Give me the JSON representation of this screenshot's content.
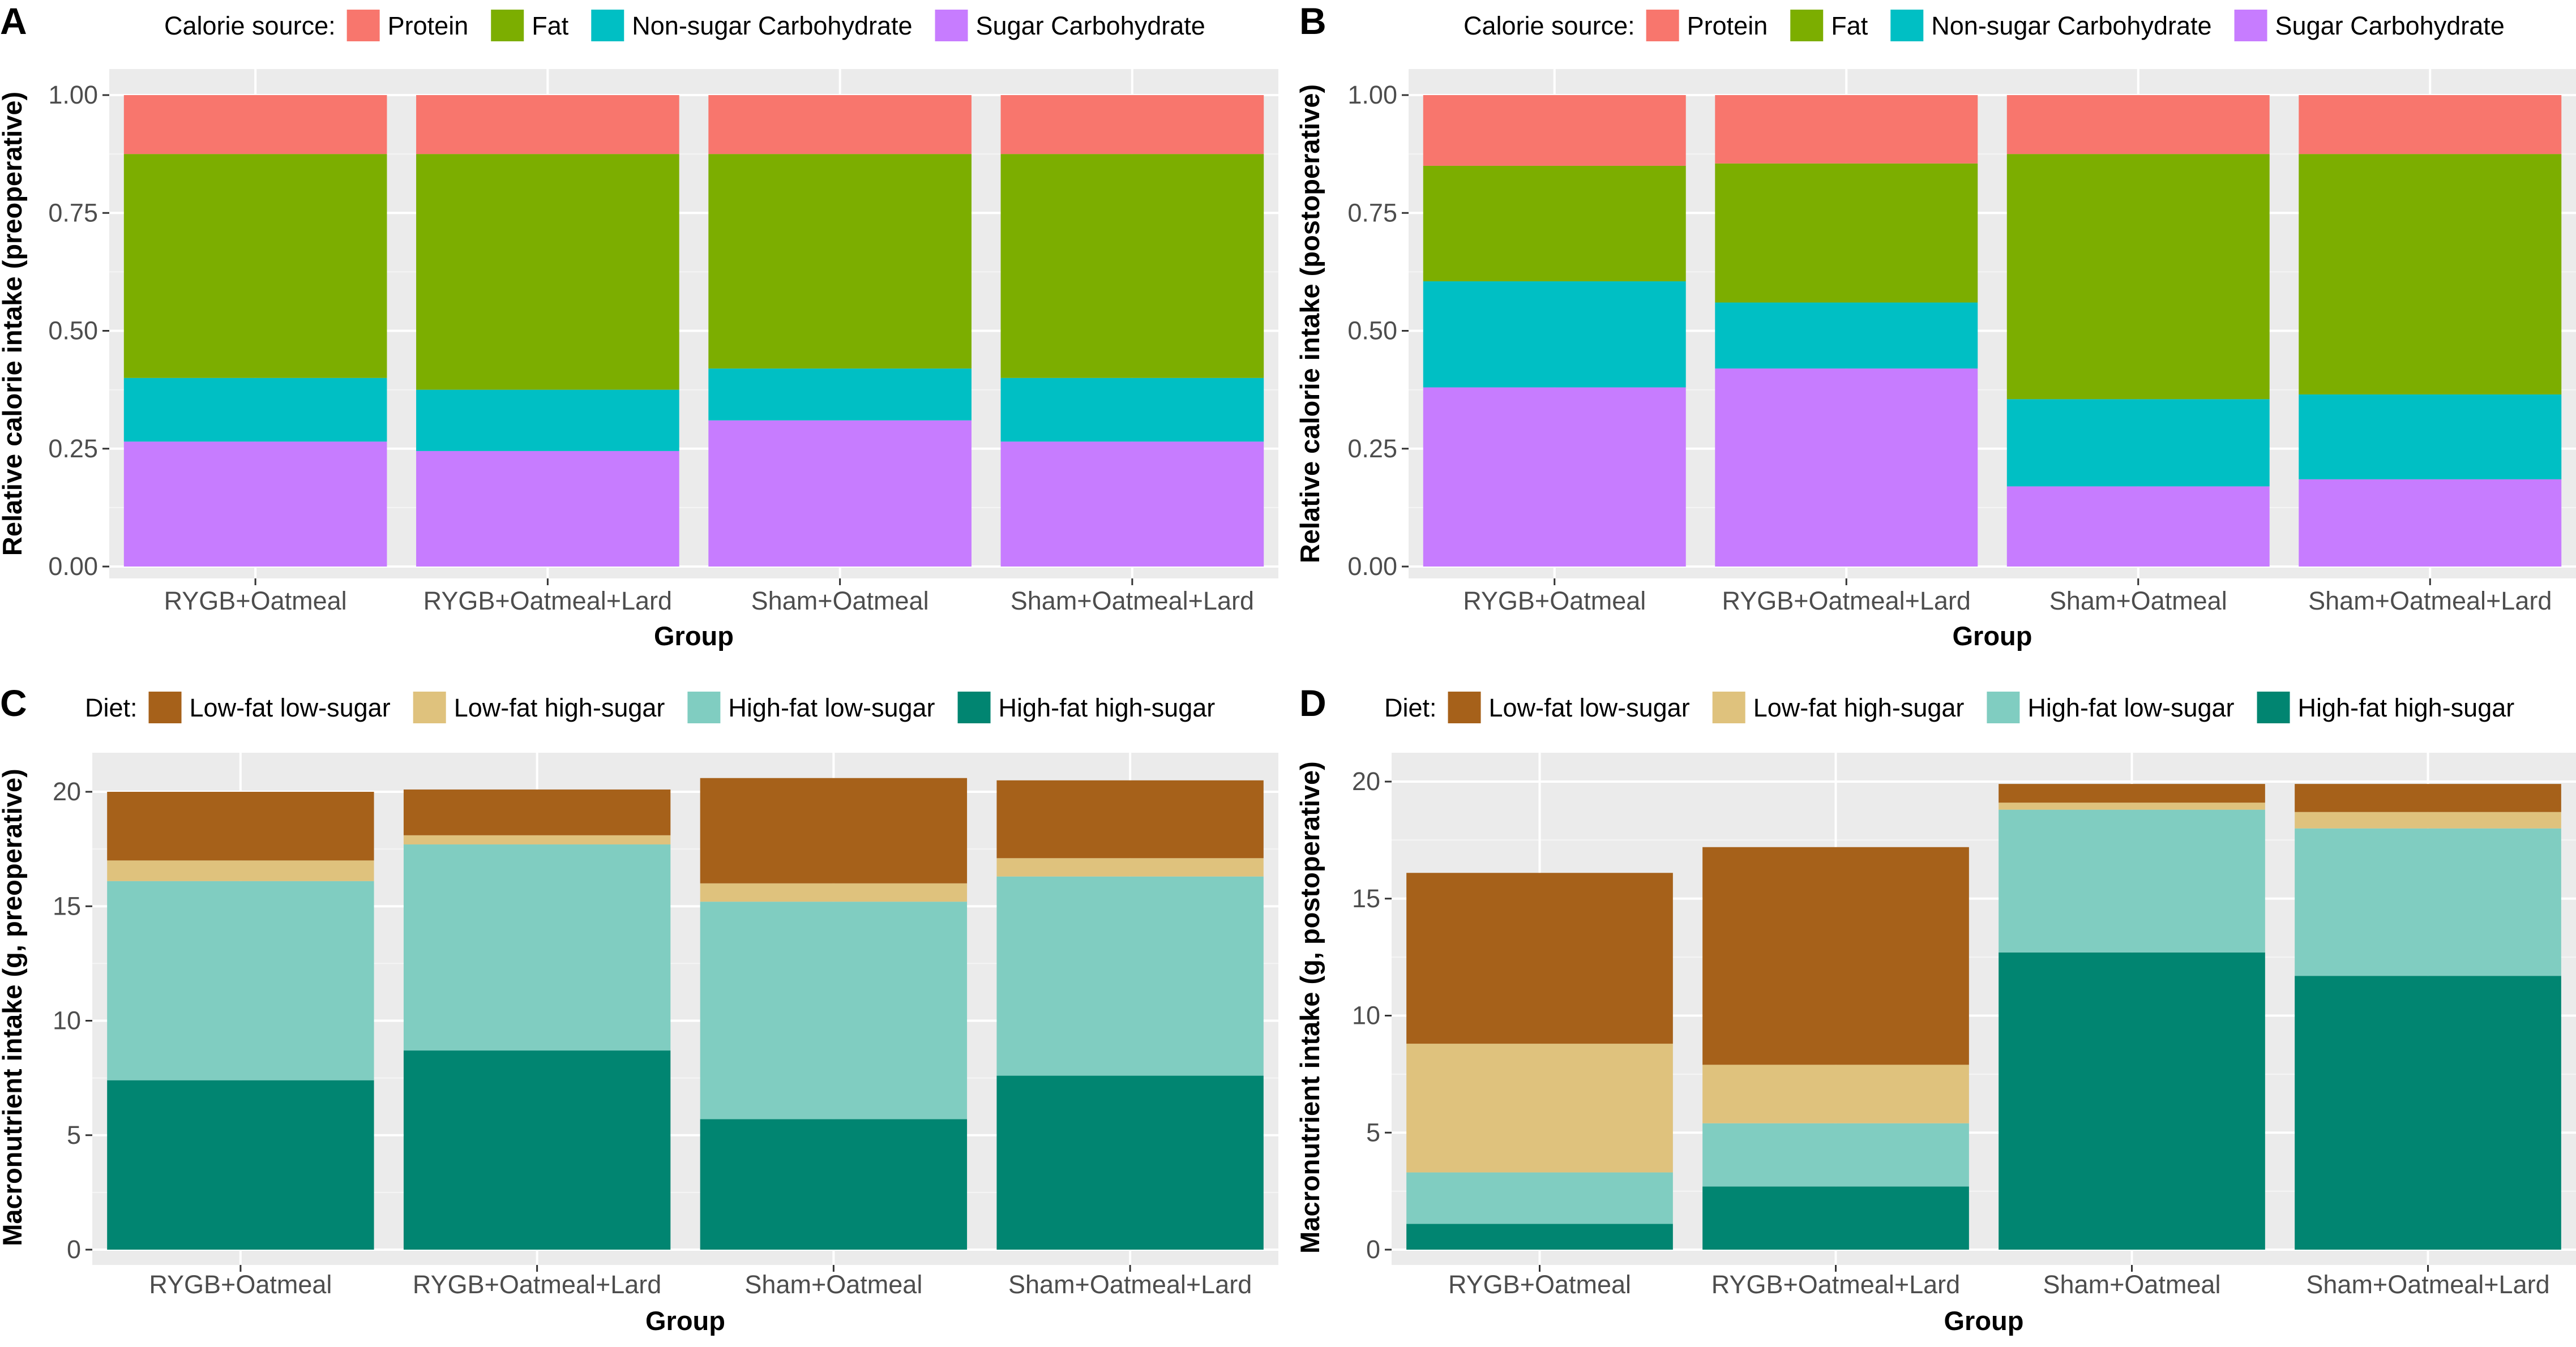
{
  "panels": [
    {
      "id": "A",
      "legend": {
        "title": "Calorie source:",
        "items": [
          {
            "label": "Protein",
            "color": "#F8766D"
          },
          {
            "label": "Fat",
            "color": "#7CAE00"
          },
          {
            "label": "Non-sugar Carbohydrate",
            "color": "#00BFC4"
          },
          {
            "label": "Sugar Carbohydrate",
            "color": "#C77CFF"
          }
        ]
      },
      "chart_data": {
        "type": "bar",
        "stacked": true,
        "title": "",
        "xlabel": "Group",
        "ylabel": "Relative calorie intake (preoperative)",
        "ylim": [
          0,
          1.0
        ],
        "yticks": [
          0.0,
          0.25,
          0.5,
          0.75,
          1.0
        ],
        "ytick_labels": [
          "0.00",
          "0.25",
          "0.50",
          "0.75",
          "1.00"
        ],
        "categories": [
          "RYGB+Oatmeal",
          "RYGB+Oatmeal+Lard",
          "Sham+Oatmeal",
          "Sham+Oatmeal+Lard"
        ],
        "series": [
          {
            "name": "Sugar Carbohydrate",
            "color": "#C77CFF",
            "values": [
              0.265,
              0.245,
              0.31,
              0.265
            ]
          },
          {
            "name": "Non-sugar Carbohydrate",
            "color": "#00BFC4",
            "values": [
              0.135,
              0.13,
              0.11,
              0.135
            ]
          },
          {
            "name": "Fat",
            "color": "#7CAE00",
            "values": [
              0.475,
              0.5,
              0.455,
              0.475
            ]
          },
          {
            "name": "Protein",
            "color": "#F8766D",
            "values": [
              0.125,
              0.125,
              0.125,
              0.125
            ]
          }
        ]
      }
    },
    {
      "id": "B",
      "legend": {
        "title": "Calorie source:",
        "items": [
          {
            "label": "Protein",
            "color": "#F8766D"
          },
          {
            "label": "Fat",
            "color": "#7CAE00"
          },
          {
            "label": "Non-sugar Carbohydrate",
            "color": "#00BFC4"
          },
          {
            "label": "Sugar Carbohydrate",
            "color": "#C77CFF"
          }
        ]
      },
      "chart_data": {
        "type": "bar",
        "stacked": true,
        "title": "",
        "xlabel": "Group",
        "ylabel": "Relative calorie intake (postoperative)",
        "ylim": [
          0,
          1.0
        ],
        "yticks": [
          0.0,
          0.25,
          0.5,
          0.75,
          1.0
        ],
        "ytick_labels": [
          "0.00",
          "0.25",
          "0.50",
          "0.75",
          "1.00"
        ],
        "categories": [
          "RYGB+Oatmeal",
          "RYGB+Oatmeal+Lard",
          "Sham+Oatmeal",
          "Sham+Oatmeal+Lard"
        ],
        "series": [
          {
            "name": "Sugar Carbohydrate",
            "color": "#C77CFF",
            "values": [
              0.38,
              0.42,
              0.17,
              0.185
            ]
          },
          {
            "name": "Non-sugar Carbohydrate",
            "color": "#00BFC4",
            "values": [
              0.225,
              0.14,
              0.185,
              0.18
            ]
          },
          {
            "name": "Fat",
            "color": "#7CAE00",
            "values": [
              0.245,
              0.295,
              0.52,
              0.51
            ]
          },
          {
            "name": "Protein",
            "color": "#F8766D",
            "values": [
              0.15,
              0.145,
              0.125,
              0.125
            ]
          }
        ]
      }
    },
    {
      "id": "C",
      "legend": {
        "title": "Diet:",
        "items": [
          {
            "label": "Low-fat low-sugar",
            "color": "#A6611A"
          },
          {
            "label": "Low-fat high-sugar",
            "color": "#DFC27D"
          },
          {
            "label": "High-fat low-sugar",
            "color": "#80CDC1"
          },
          {
            "label": "High-fat high-sugar",
            "color": "#018571"
          }
        ]
      },
      "chart_data": {
        "type": "bar",
        "stacked": true,
        "title": "",
        "xlabel": "Group",
        "ylabel": "Macronutrient intake (g, preoperative)",
        "ylim": [
          0,
          21
        ],
        "yticks": [
          0,
          5,
          10,
          15,
          20
        ],
        "ytick_labels": [
          "0",
          "5",
          "10",
          "15",
          "20"
        ],
        "categories": [
          "RYGB+Oatmeal",
          "RYGB+Oatmeal+Lard",
          "Sham+Oatmeal",
          "Sham+Oatmeal+Lard"
        ],
        "series": [
          {
            "name": "High-fat high-sugar",
            "color": "#018571",
            "values": [
              7.4,
              8.7,
              5.7,
              7.6
            ]
          },
          {
            "name": "High-fat low-sugar",
            "color": "#80CDC1",
            "values": [
              8.7,
              9.0,
              9.5,
              8.7
            ]
          },
          {
            "name": "Low-fat high-sugar",
            "color": "#DFC27D",
            "values": [
              0.9,
              0.4,
              0.8,
              0.8
            ]
          },
          {
            "name": "Low-fat low-sugar",
            "color": "#A6611A",
            "values": [
              3.0,
              2.0,
              4.6,
              3.4
            ]
          }
        ]
      }
    },
    {
      "id": "D",
      "legend": {
        "title": "Diet:",
        "items": [
          {
            "label": "Low-fat low-sugar",
            "color": "#A6611A"
          },
          {
            "label": "Low-fat high-sugar",
            "color": "#DFC27D"
          },
          {
            "label": "High-fat low-sugar",
            "color": "#80CDC1"
          },
          {
            "label": "High-fat high-sugar",
            "color": "#018571"
          }
        ]
      },
      "chart_data": {
        "type": "bar",
        "stacked": true,
        "title": "",
        "xlabel": "Group",
        "ylabel": "Macronutrient intake (g, postoperative)",
        "ylim": [
          0,
          20.7
        ],
        "yticks": [
          0,
          5,
          10,
          15,
          20
        ],
        "ytick_labels": [
          "0",
          "5",
          "10",
          "15",
          "20"
        ],
        "categories": [
          "RYGB+Oatmeal",
          "RYGB+Oatmeal+Lard",
          "Sham+Oatmeal",
          "Sham+Oatmeal+Lard"
        ],
        "series": [
          {
            "name": "High-fat high-sugar",
            "color": "#018571",
            "values": [
              1.1,
              2.7,
              12.7,
              11.7
            ]
          },
          {
            "name": "High-fat low-sugar",
            "color": "#80CDC1",
            "values": [
              2.2,
              2.7,
              6.1,
              6.3
            ]
          },
          {
            "name": "Low-fat high-sugar",
            "color": "#DFC27D",
            "values": [
              5.5,
              2.5,
              0.3,
              0.7
            ]
          },
          {
            "name": "Low-fat low-sugar",
            "color": "#A6611A",
            "values": [
              7.3,
              9.3,
              0.8,
              1.2
            ]
          }
        ]
      }
    }
  ]
}
